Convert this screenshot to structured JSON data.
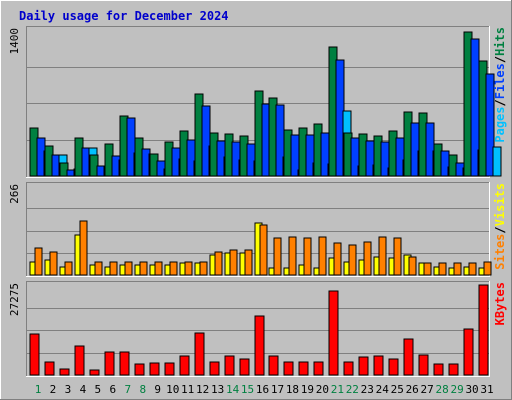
{
  "chart_data": {
    "title": "Daily usage for December 2024",
    "days": [
      "1",
      "2",
      "3",
      "4",
      "5",
      "6",
      "7",
      "8",
      "9",
      "10",
      "11",
      "12",
      "13",
      "14",
      "15",
      "16",
      "17",
      "18",
      "19",
      "20",
      "21",
      "22",
      "23",
      "24",
      "25",
      "26",
      "27",
      "28",
      "29",
      "30",
      "31"
    ],
    "weekend_days": [
      "1",
      "7",
      "8",
      "14",
      "15",
      "21",
      "22",
      "28",
      "29"
    ],
    "colors": {
      "title": "#0000cc",
      "day_label": "#000000",
      "weekend_label": "#008040",
      "hits": "#008040",
      "files": "#0040ff",
      "pages": "#00c0ff",
      "visits": "#ffff00",
      "sites": "#ff8000",
      "kbytes": "#ff0000",
      "separator": "#000000"
    },
    "charts": [
      {
        "type": "bar",
        "ymax": 1400,
        "ymax_label": "1400",
        "legend": [
          {
            "label": "Hits",
            "color": "#008040"
          },
          {
            "label": "/",
            "color": "#000000"
          },
          {
            "label": "Files",
            "color": "#0040ff"
          },
          {
            "label": "/",
            "color": "#000000"
          },
          {
            "label": "Pages",
            "color": "#00c0ff"
          }
        ],
        "series": [
          {
            "key": "hits",
            "color": "#008040",
            "values": [
              465,
              290,
              120,
              360,
              200,
              310,
              580,
              360,
              210,
              330,
              435,
              790,
              410,
              405,
              385,
              815,
              750,
              445,
              460,
              500,
              1240,
              410,
              405,
              385,
              435,
              610,
              605,
              310,
              200,
              1380,
              1100
            ]
          },
          {
            "key": "files",
            "color": "#0040ff",
            "values": [
              360,
              200,
              60,
              270,
              100,
              190,
              555,
              255,
              145,
              265,
              345,
              675,
              340,
              330,
              310,
              690,
              680,
              390,
              390,
              415,
              1115,
              360,
              335,
              325,
              365,
              505,
              505,
              240,
              120,
              1315,
              980
            ]
          },
          {
            "key": "pages",
            "color": "#00c0ff",
            "values": [
              235,
              205,
              65,
              270,
              90,
              155,
              225,
              215,
              70,
              165,
              140,
              285,
              185,
              150,
              145,
              415,
              185,
              60,
              120,
              115,
              625,
              95,
              110,
              80,
              150,
              240,
              235,
              90,
              75,
              245,
              275
            ]
          }
        ]
      },
      {
        "type": "bar",
        "ymax": 266,
        "ymax_label": "266",
        "legend": [
          {
            "label": "Visits",
            "color": "#ffff00"
          },
          {
            "label": "/",
            "color": "#000000"
          },
          {
            "label": "Sites",
            "color": "#ff8000"
          }
        ],
        "series": [
          {
            "key": "visits",
            "color": "#ffff00",
            "values": [
              40,
              45,
              25,
              120,
              30,
              25,
              30,
              30,
              30,
              30,
              35,
              35,
              60,
              65,
              65,
              155,
              20,
              20,
              30,
              20,
              50,
              40,
              45,
              55,
              50,
              60,
              35,
              25,
              20,
              25,
              20
            ]
          },
          {
            "key": "sites",
            "color": "#ff8000",
            "values": [
              80,
              70,
              40,
              160,
              40,
              40,
              40,
              40,
              40,
              40,
              40,
              40,
              70,
              75,
              75,
              150,
              110,
              115,
              110,
              115,
              95,
              90,
              100,
              115,
              110,
              55,
              35,
              35,
              35,
              35,
              40
            ]
          }
        ]
      },
      {
        "type": "bar",
        "ymax": 27275,
        "ymax_label": "27275",
        "legend": [
          {
            "label": "KBytes",
            "color": "#ff0000"
          }
        ],
        "series": [
          {
            "key": "kbytes",
            "color": "#ff0000",
            "values": [
              12500,
              3900,
              1800,
              8800,
              1600,
              7000,
              7000,
              3400,
              3500,
              3500,
              5800,
              12700,
              3900,
              5800,
              5000,
              17900,
              5700,
              3900,
              3900,
              3900,
              25400,
              3800,
              5600,
              5800,
              4800,
              10800,
              6000,
              3300,
              3400,
              13900,
              27275
            ]
          }
        ]
      }
    ]
  }
}
